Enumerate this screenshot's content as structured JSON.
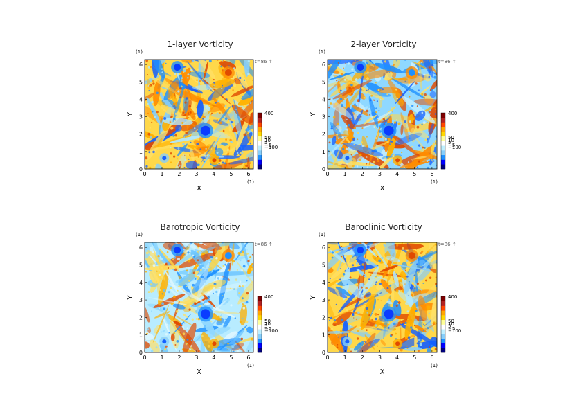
{
  "chart_data": [
    {
      "type": "heatmap",
      "title": "1-layer Vorticity",
      "xlabel": "X",
      "ylabel": "Y",
      "x_unit": "(1)",
      "y_unit": "(1)",
      "time_label": "t=86",
      "time_marker": "↑",
      "xlim": [
        0,
        6.283
      ],
      "ylim": [
        0,
        6.283
      ],
      "x_ticks": [
        "0",
        "1",
        "2",
        "3",
        "4",
        "5",
        "6"
      ],
      "y_ticks": [
        "0",
        "1",
        "2",
        "3",
        "4",
        "5",
        "6"
      ],
      "colorbar_labels": [
        "400",
        "50",
        "10",
        "5",
        "−5",
        "−100"
      ],
      "colorbar_values": [
        400,
        50,
        10,
        5,
        -5,
        -100
      ],
      "colormap": [
        "#00007f",
        "#0000ff",
        "#1e90ff",
        "#87cefa",
        "#bfefff",
        "#ffffff",
        "#ffff99",
        "#ffd700",
        "#ffa500",
        "#ff4500",
        "#b22222",
        "#7f0000"
      ],
      "dominant_sign": "positive"
    },
    {
      "type": "heatmap",
      "title": "2-layer Vorticity",
      "xlabel": "X",
      "ylabel": "Y",
      "x_unit": "(1)",
      "y_unit": "(1)",
      "time_label": "t=86",
      "time_marker": "↑",
      "xlim": [
        0,
        6.283
      ],
      "ylim": [
        0,
        6.283
      ],
      "x_ticks": [
        "0",
        "1",
        "2",
        "3",
        "4",
        "5",
        "6"
      ],
      "y_ticks": [
        "0",
        "1",
        "2",
        "3",
        "4",
        "5",
        "6"
      ],
      "colorbar_labels": [
        "400",
        "50",
        "10",
        "5",
        "−5",
        "−100"
      ],
      "colorbar_values": [
        400,
        50,
        10,
        5,
        -5,
        -100
      ],
      "colormap": [
        "#00007f",
        "#0000ff",
        "#1e90ff",
        "#87cefa",
        "#bfefff",
        "#ffffff",
        "#ffff99",
        "#ffd700",
        "#ffa500",
        "#ff4500",
        "#b22222",
        "#7f0000"
      ],
      "dominant_sign": "mixed"
    },
    {
      "type": "heatmap",
      "title": "Barotropic Vorticity",
      "xlabel": "X",
      "ylabel": "Y",
      "x_unit": "(1)",
      "y_unit": "(1)",
      "time_label": "t=86",
      "time_marker": "↑",
      "xlim": [
        0,
        6.283
      ],
      "ylim": [
        0,
        6.283
      ],
      "x_ticks": [
        "0",
        "1",
        "2",
        "3",
        "4",
        "5",
        "6"
      ],
      "y_ticks": [
        "0",
        "1",
        "2",
        "3",
        "4",
        "5",
        "6"
      ],
      "colorbar_labels": [
        "400",
        "50",
        "10",
        "5",
        "−5",
        "−100"
      ],
      "colorbar_values": [
        400,
        50,
        10,
        5,
        -5,
        -100
      ],
      "colormap": [
        "#00007f",
        "#0000ff",
        "#1e90ff",
        "#87cefa",
        "#bfefff",
        "#ffffff",
        "#ffff99",
        "#ffd700",
        "#ffa500",
        "#ff4500",
        "#b22222",
        "#7f0000"
      ],
      "dominant_sign": "weak"
    },
    {
      "type": "heatmap",
      "title": "Baroclinic Vorticity",
      "xlabel": "X",
      "ylabel": "Y",
      "x_unit": "(1)",
      "y_unit": "(1)",
      "time_label": "t=86",
      "time_marker": "↑",
      "xlim": [
        0,
        6.283
      ],
      "ylim": [
        0,
        6.283
      ],
      "x_ticks": [
        "0",
        "1",
        "2",
        "3",
        "4",
        "5",
        "6"
      ],
      "y_ticks": [
        "0",
        "1",
        "2",
        "3",
        "4",
        "5",
        "6"
      ],
      "colorbar_labels": [
        "400",
        "50",
        "10",
        "5",
        "−5",
        "−100"
      ],
      "colorbar_values": [
        400,
        50,
        10,
        5,
        -5,
        -100
      ],
      "colormap": [
        "#00007f",
        "#0000ff",
        "#1e90ff",
        "#87cefa",
        "#bfefff",
        "#ffffff",
        "#ffff99",
        "#ffd700",
        "#ffa500",
        "#ff4500",
        "#b22222",
        "#7f0000"
      ],
      "dominant_sign": "positive"
    }
  ]
}
